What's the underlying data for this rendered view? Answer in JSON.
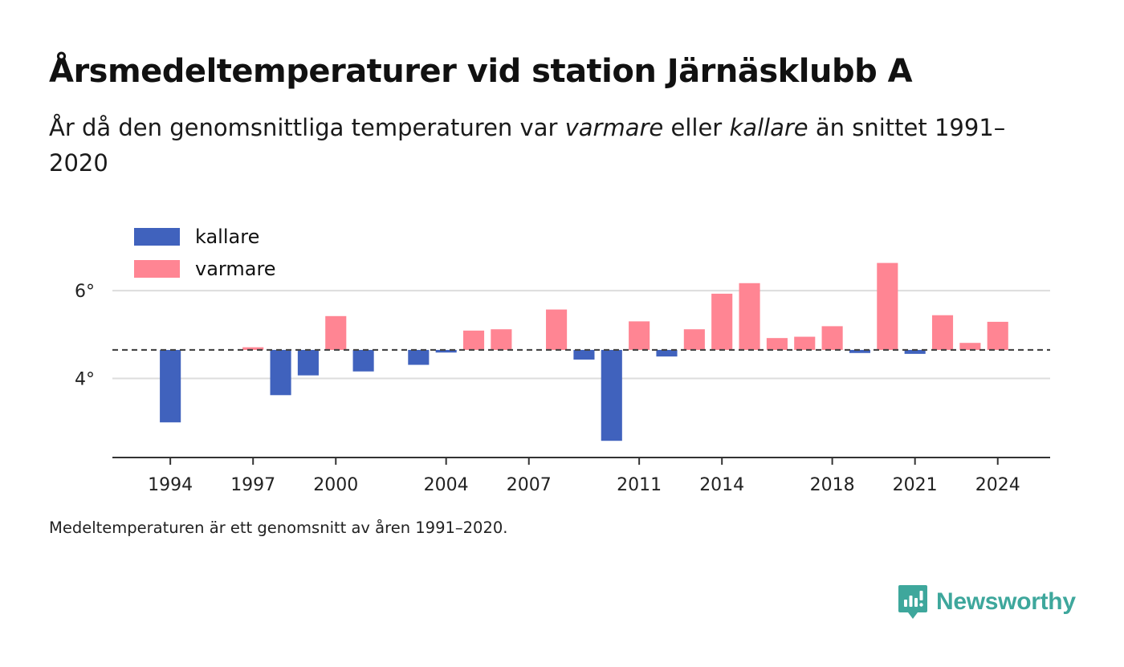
{
  "title": "Årsmedeltemperaturer vid station Järnäsklubb A",
  "subtitle": {
    "part1": "År då den genomsnittliga temperaturen var ",
    "warmer_word": "varmare",
    "part2": " eller ",
    "colder_word": "kallare",
    "part3": " än snittet 1991–2020"
  },
  "footnote": "Medeltemperaturen är ett genomsnitt av åren 1991–2020.",
  "brand": {
    "name": "Newsworthy",
    "color": "#3ea79c"
  },
  "chart_data": {
    "type": "bar",
    "baseline": 4.65,
    "baseline_style": "dashed",
    "ylim": [
      2.2,
      7.5
    ],
    "xlim": [
      1991.9,
      2025.9
    ],
    "y_ticks": [
      {
        "value": 4,
        "label": "4°"
      },
      {
        "value": 6,
        "label": "6°"
      }
    ],
    "x_ticks": [
      1994,
      1997,
      2000,
      2004,
      2007,
      2011,
      2014,
      2018,
      2021,
      2024
    ],
    "grid": "horizontal",
    "legend": {
      "placement": "top-left",
      "items": [
        {
          "label": "kallare",
          "color": "#4062bd"
        },
        {
          "label": "varmare",
          "color": "#ff8593"
        }
      ]
    },
    "colors": {
      "colder": "#4062bd",
      "warmer": "#ff8593"
    },
    "years": [
      1994,
      1997,
      1998,
      1999,
      2000,
      2001,
      2003,
      2004,
      2005,
      2006,
      2008,
      2009,
      2010,
      2011,
      2012,
      2013,
      2014,
      2015,
      2016,
      2017,
      2018,
      2019,
      2020,
      2021,
      2022,
      2023,
      2024
    ],
    "values": [
      3.0,
      4.71,
      3.62,
      4.07,
      5.42,
      4.16,
      4.31,
      4.59,
      5.09,
      5.12,
      5.57,
      4.43,
      2.58,
      5.3,
      4.5,
      5.12,
      5.93,
      6.17,
      4.92,
      4.95,
      5.19,
      4.58,
      6.63,
      4.56,
      5.44,
      4.81,
      5.29
    ]
  }
}
